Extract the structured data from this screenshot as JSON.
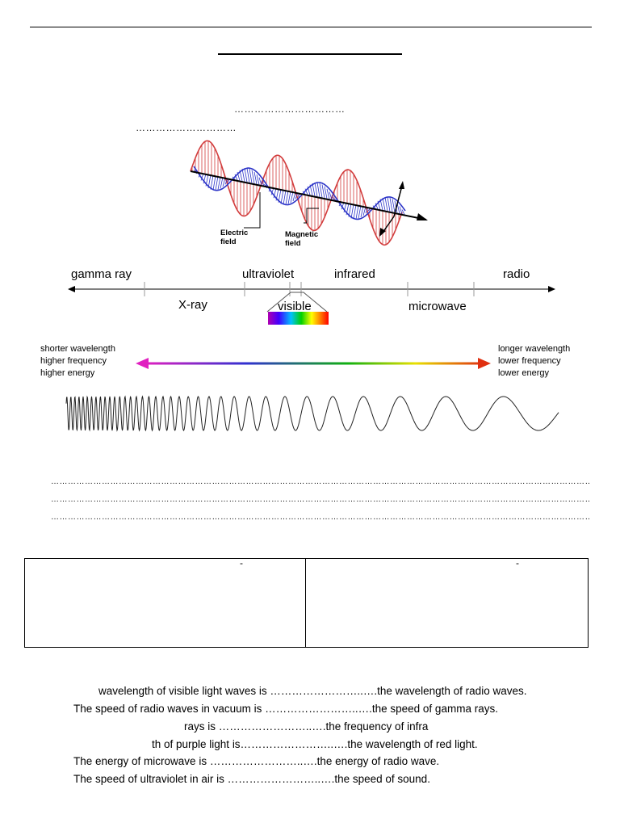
{
  "header": {
    "blank_line_1": "……………………………",
    "blank_line_2": "…………………………"
  },
  "wave_diagram": {
    "electric_label": "Electric\nfield",
    "magnetic_label": "Magnetic\nfield",
    "colors": {
      "electric": "#d23c3c",
      "magnetic": "#2d35c8",
      "axis": "#000000"
    }
  },
  "spectrum": {
    "top_labels": [
      "gamma ray",
      "ultraviolet",
      "infrared",
      "radio"
    ],
    "bottom_labels": [
      "X-ray",
      "visible",
      "microwave"
    ]
  },
  "gradient": {
    "left_text": "shorter wavelength\nhigher frequency\nhigher energy",
    "right_text": "longer wavelength\nlower frequency\nlower energy",
    "colors": {
      "start": "#e020c0",
      "end": "#e03010"
    }
  },
  "answer_lines": [
    "…………………………………………………………………………………………………………………………………………………………………………………………………………………………………………………………………………",
    "…………………………………………………………………………………………………………………………………………………………………………………………………………………………………………………………………………",
    "…………………………………………………………………………………………………………………………………………………………………………………………………………………………………………………………………………"
  ],
  "table": {
    "left_mark": "-",
    "right_mark": "-"
  },
  "questions": [
    "wavelength of visible light waves is ……………………..….the wavelength of radio waves.",
    "The speed of radio waves in vacuum is ……………………..….the speed of gamma rays.",
    "rays is ……………………..….the frequency of infra",
    "th of purple light is……………………..….the wavelength of red light.",
    "The energy of microwave is ……………………..….the energy of radio wave.",
    "The speed of ultraviolet in air is ……………………..….the speed of sound."
  ]
}
